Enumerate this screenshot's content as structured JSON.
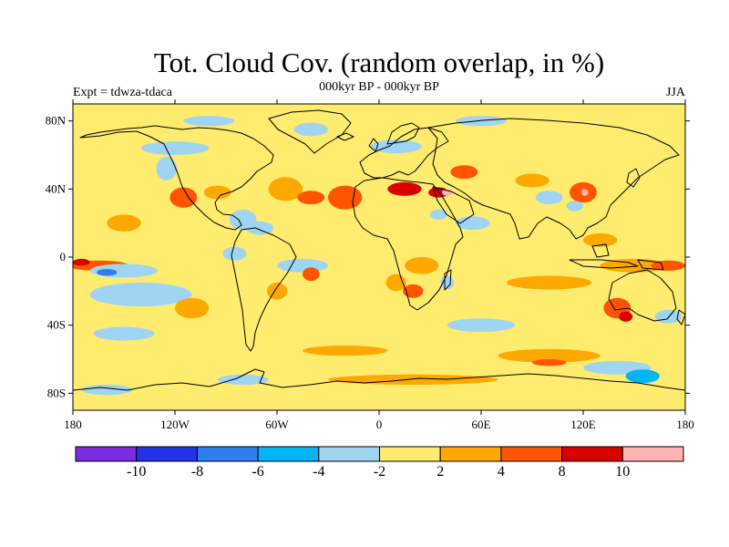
{
  "title": "Tot. Cloud Cov. (random overlap, in %)",
  "subtitle": "000kyr BP - 000kyr BP",
  "left_label": "Expt = tdwza-tdaca",
  "right_label": "JJA",
  "map": {
    "projection": "cylindrical equidistant",
    "lon_range": [
      -180,
      180
    ],
    "lat_range": [
      -90,
      90
    ],
    "background_level_color": "#ffec6e",
    "lon_ticks": [
      {
        "lon": -180,
        "label": "180"
      },
      {
        "lon": -120,
        "label": "120W"
      },
      {
        "lon": -60,
        "label": "60W"
      },
      {
        "lon": 0,
        "label": "0"
      },
      {
        "lon": 60,
        "label": "60E"
      },
      {
        "lon": 120,
        "label": "120E"
      },
      {
        "lon": 180,
        "label": "180"
      }
    ],
    "lat_ticks": [
      {
        "lat": 80,
        "label": "80N"
      },
      {
        "lat": 40,
        "label": "40N"
      },
      {
        "lat": 0,
        "label": "0"
      },
      {
        "lat": -40,
        "label": "40S"
      },
      {
        "lat": -80,
        "label": "80S"
      }
    ]
  },
  "colorbar": {
    "colors": [
      "#7b2be0",
      "#2433e8",
      "#2f7ef0",
      "#00b6f5",
      "#9fd5f2",
      "#ffec6e",
      "#ffa800",
      "#ff5500",
      "#d90000",
      "#ffb2b2"
    ],
    "labels": [
      {
        "boundary": 1,
        "text": "-10"
      },
      {
        "boundary": 2,
        "text": "-8"
      },
      {
        "boundary": 3,
        "text": "-6"
      },
      {
        "boundary": 4,
        "text": "-4"
      },
      {
        "boundary": 5,
        "text": "-2"
      },
      {
        "boundary": 6,
        "text": "2"
      },
      {
        "boundary": 7,
        "text": "4"
      },
      {
        "boundary": 8,
        "text": "8"
      },
      {
        "boundary": 9,
        "text": "10"
      }
    ]
  },
  "anomaly_patches": [
    {
      "lon": -150,
      "lat": 20,
      "rlon": 10,
      "rlat": 5,
      "level": 6
    },
    {
      "lon": -165,
      "lat": -5,
      "rlon": 18,
      "rlat": 3,
      "level": 7
    },
    {
      "lon": -175,
      "lat": -3,
      "rlon": 5,
      "rlat": 2,
      "level": 8
    },
    {
      "lon": -150,
      "lat": -8,
      "rlon": 20,
      "rlat": 4,
      "level": 4
    },
    {
      "lon": -160,
      "lat": -9,
      "rlon": 6,
      "rlat": 2,
      "level": 2
    },
    {
      "lon": -140,
      "lat": -22,
      "rlon": 30,
      "rlat": 7,
      "level": 4
    },
    {
      "lon": -150,
      "lat": -45,
      "rlon": 18,
      "rlat": 4,
      "level": 4
    },
    {
      "lon": -110,
      "lat": -30,
      "rlon": 10,
      "rlat": 6,
      "level": 6
    },
    {
      "lon": -120,
      "lat": 64,
      "rlon": 20,
      "rlat": 4,
      "level": 4
    },
    {
      "lon": -125,
      "lat": 52,
      "rlon": 6,
      "rlat": 7,
      "level": 4
    },
    {
      "lon": -115,
      "lat": 35,
      "rlon": 8,
      "rlat": 6,
      "level": 7
    },
    {
      "lon": -95,
      "lat": 38,
      "rlon": 8,
      "rlat": 4,
      "level": 6
    },
    {
      "lon": -80,
      "lat": 22,
      "rlon": 8,
      "rlat": 6,
      "level": 4
    },
    {
      "lon": -70,
      "lat": 17,
      "rlon": 8,
      "rlat": 4,
      "level": 4
    },
    {
      "lon": -85,
      "lat": 2,
      "rlon": 7,
      "rlat": 4,
      "level": 4
    },
    {
      "lon": -55,
      "lat": 40,
      "rlon": 10,
      "rlat": 7,
      "level": 6
    },
    {
      "lon": -40,
      "lat": 35,
      "rlon": 8,
      "rlat": 4,
      "level": 7
    },
    {
      "lon": -45,
      "lat": -5,
      "rlon": 15,
      "rlat": 4,
      "level": 4
    },
    {
      "lon": -60,
      "lat": -20,
      "rlon": 6,
      "rlat": 5,
      "level": 6
    },
    {
      "lon": -40,
      "lat": -10,
      "rlon": 5,
      "rlat": 4,
      "level": 7
    },
    {
      "lon": -20,
      "lat": 35,
      "rlon": 10,
      "rlat": 7,
      "level": 7
    },
    {
      "lon": -20,
      "lat": -55,
      "rlon": 25,
      "rlat": 3,
      "level": 6
    },
    {
      "lon": 15,
      "lat": 40,
      "rlon": 10,
      "rlat": 4,
      "level": 8
    },
    {
      "lon": 35,
      "lat": 38,
      "rlon": 6,
      "rlat": 3,
      "level": 8
    },
    {
      "lon": 40,
      "lat": 38,
      "rlon": 3,
      "rlat": 2,
      "level": 9
    },
    {
      "lon": 10,
      "lat": 65,
      "rlon": 15,
      "rlat": 4,
      "level": 4
    },
    {
      "lon": 50,
      "lat": 50,
      "rlon": 8,
      "rlat": 4,
      "level": 7
    },
    {
      "lon": 55,
      "lat": 20,
      "rlon": 10,
      "rlat": 4,
      "level": 4
    },
    {
      "lon": 35,
      "lat": 25,
      "rlon": 5,
      "rlat": 3,
      "level": 4
    },
    {
      "lon": 25,
      "lat": -5,
      "rlon": 10,
      "rlat": 5,
      "level": 6
    },
    {
      "lon": 20,
      "lat": -20,
      "rlon": 6,
      "rlat": 4,
      "level": 7
    },
    {
      "lon": 10,
      "lat": -15,
      "rlon": 6,
      "rlat": 5,
      "level": 6
    },
    {
      "lon": 40,
      "lat": -15,
      "rlon": 4,
      "rlat": 4,
      "level": 4
    },
    {
      "lon": 90,
      "lat": 45,
      "rlon": 10,
      "rlat": 4,
      "level": 6
    },
    {
      "lon": 100,
      "lat": 35,
      "rlon": 8,
      "rlat": 4,
      "level": 4
    },
    {
      "lon": 120,
      "lat": 38,
      "rlon": 8,
      "rlat": 6,
      "level": 7
    },
    {
      "lon": 121,
      "lat": 38,
      "rlon": 2,
      "rlat": 2,
      "level": 9
    },
    {
      "lon": 115,
      "lat": 30,
      "rlon": 5,
      "rlat": 3,
      "level": 4
    },
    {
      "lon": 130,
      "lat": 10,
      "rlon": 10,
      "rlat": 4,
      "level": 6
    },
    {
      "lon": 100,
      "lat": -15,
      "rlon": 25,
      "rlat": 4,
      "level": 6
    },
    {
      "lon": 150,
      "lat": -5,
      "rlon": 20,
      "rlat": 4,
      "level": 6
    },
    {
      "lon": 170,
      "lat": -5,
      "rlon": 10,
      "rlat": 3,
      "level": 7
    },
    {
      "lon": 140,
      "lat": -30,
      "rlon": 8,
      "rlat": 6,
      "level": 7
    },
    {
      "lon": 145,
      "lat": -35,
      "rlon": 4,
      "rlat": 3,
      "level": 8
    },
    {
      "lon": 170,
      "lat": -35,
      "rlon": 8,
      "rlat": 4,
      "level": 4
    },
    {
      "lon": 60,
      "lat": -40,
      "rlon": 20,
      "rlat": 4,
      "level": 4
    },
    {
      "lon": 100,
      "lat": -58,
      "rlon": 30,
      "rlat": 4,
      "level": 6
    },
    {
      "lon": 100,
      "lat": -62,
      "rlon": 10,
      "rlat": 2,
      "level": 7
    },
    {
      "lon": 140,
      "lat": -65,
      "rlon": 20,
      "rlat": 4,
      "level": 4
    },
    {
      "lon": 155,
      "lat": -70,
      "rlon": 10,
      "rlat": 4,
      "level": 3
    },
    {
      "lon": 20,
      "lat": -72,
      "rlon": 50,
      "rlat": 3,
      "level": 6
    },
    {
      "lon": -80,
      "lat": -72,
      "rlon": 15,
      "rlat": 3,
      "level": 4
    },
    {
      "lon": -160,
      "lat": -78,
      "rlon": 15,
      "rlat": 3,
      "level": 4
    },
    {
      "lon": -100,
      "lat": 80,
      "rlon": 15,
      "rlat": 3,
      "level": 4
    },
    {
      "lon": -40,
      "lat": 75,
      "rlon": 10,
      "rlat": 4,
      "level": 4
    },
    {
      "lon": 60,
      "lat": 80,
      "rlon": 15,
      "rlat": 3,
      "level": 4
    }
  ]
}
